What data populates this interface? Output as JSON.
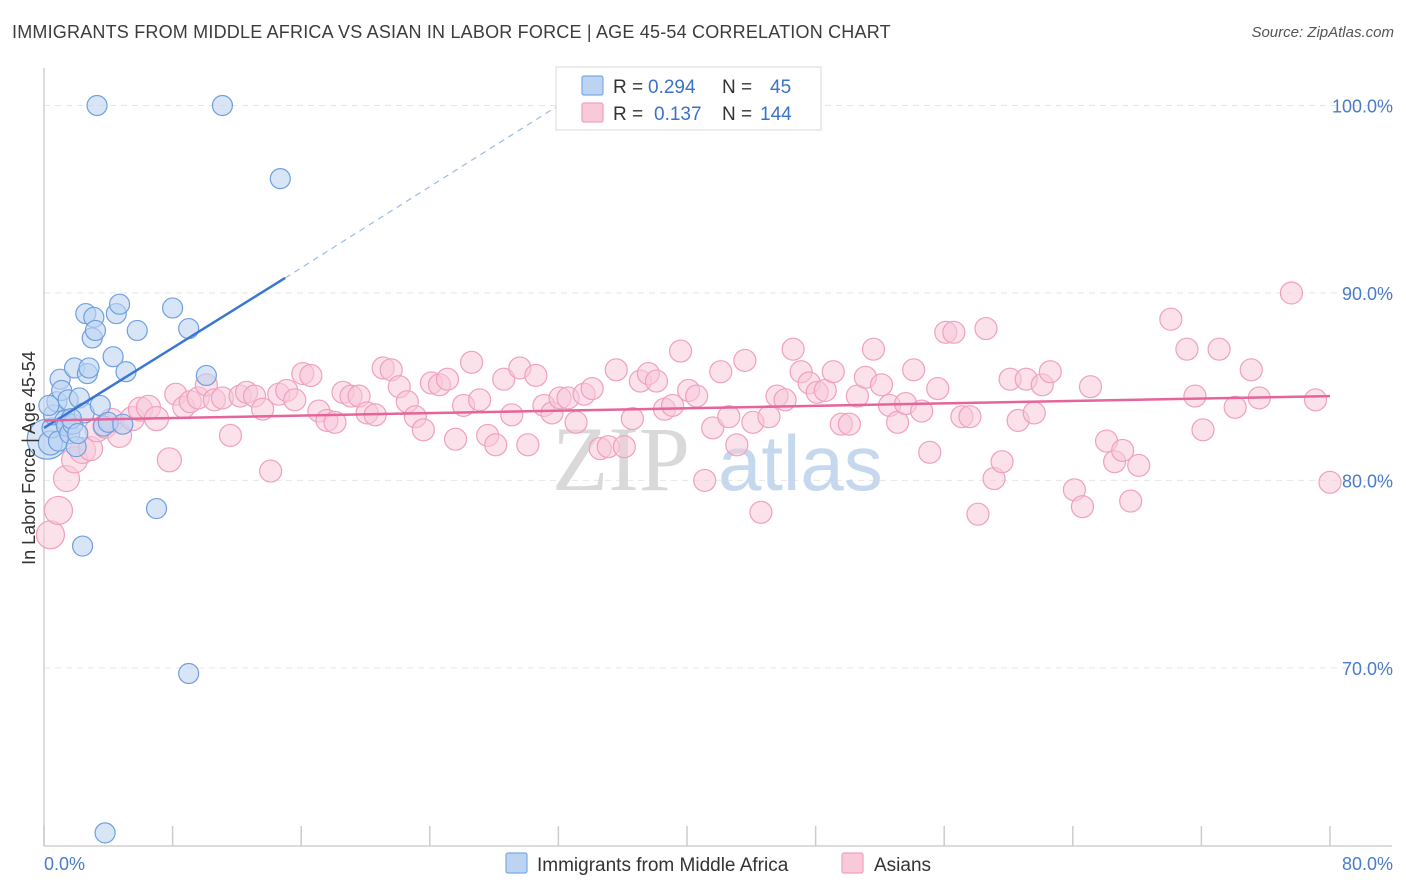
{
  "title": "IMMIGRANTS FROM MIDDLE AFRICA VS ASIAN IN LABOR FORCE | AGE 45-54 CORRELATION CHART",
  "source": "Source: ZipAtlas.com",
  "watermark": {
    "zip": "ZIP",
    "atlas": "atlas"
  },
  "chart_data": {
    "type": "scatter",
    "xlabel": "",
    "ylabel": "In Labor Force | Age 45-54",
    "xlim": [
      0,
      80
    ],
    "ylim": [
      60.5,
      102
    ],
    "x_tick_labels": [
      "0.0%",
      "80.0%"
    ],
    "y_ticks": [
      70,
      80,
      90,
      100
    ],
    "y_tick_labels": [
      "70.0%",
      "80.0%",
      "90.0%",
      "100.0%"
    ],
    "grid": true,
    "legend": {
      "placement": "top-center",
      "entries": [
        {
          "r_label": "R =",
          "r_value": "0.294",
          "n_label": "N =",
          "n_value": "45"
        },
        {
          "r_label": "R =",
          "r_value": "0.137",
          "n_label": "N =",
          "n_value": "144"
        }
      ]
    },
    "series": [
      {
        "name": "Immigrants from Middle Africa",
        "color": "#7aa9e3",
        "line_color": "#3a75d4",
        "trend": {
          "x": [
            0,
            15
          ],
          "y": [
            82.8,
            90.8
          ],
          "dashed_to": [
            32,
            100
          ]
        },
        "points": [
          [
            0.2,
            82.2
          ],
          [
            0.4,
            82.0
          ],
          [
            0.5,
            82.8
          ],
          [
            0.6,
            83.5
          ],
          [
            0.8,
            84.2
          ],
          [
            0.9,
            82.1
          ],
          [
            1.0,
            85.4
          ],
          [
            1.1,
            84.8
          ],
          [
            1.3,
            83.2
          ],
          [
            1.4,
            82.9
          ],
          [
            1.5,
            84.3
          ],
          [
            1.6,
            82.5
          ],
          [
            1.8,
            83.0
          ],
          [
            1.9,
            86.0
          ],
          [
            2.0,
            81.8
          ],
          [
            2.2,
            84.4
          ],
          [
            2.5,
            83.6
          ],
          [
            2.6,
            88.9
          ],
          [
            2.7,
            85.7
          ],
          [
            2.8,
            86.0
          ],
          [
            3.0,
            87.6
          ],
          [
            3.1,
            88.7
          ],
          [
            3.2,
            88.0
          ],
          [
            3.5,
            84.0
          ],
          [
            3.7,
            82.9
          ],
          [
            4.0,
            83.1
          ],
          [
            4.3,
            86.6
          ],
          [
            4.5,
            88.9
          ],
          [
            4.7,
            89.4
          ],
          [
            4.9,
            83.0
          ],
          [
            5.1,
            85.8
          ],
          [
            5.8,
            88.0
          ],
          [
            7.0,
            78.5
          ],
          [
            8.0,
            89.2
          ],
          [
            9.0,
            88.1
          ],
          [
            10.1,
            85.6
          ],
          [
            3.3,
            100.0
          ],
          [
            11.1,
            100.0
          ],
          [
            14.7,
            96.1
          ],
          [
            2.4,
            76.5
          ],
          [
            9.0,
            69.7
          ],
          [
            3.8,
            61.2
          ],
          [
            0.3,
            84.0
          ],
          [
            1.7,
            83.3
          ],
          [
            2.1,
            82.5
          ]
        ],
        "sizes": [
          20,
          12,
          10,
          10,
          10,
          10,
          10,
          10,
          10,
          10,
          10,
          10,
          10,
          10,
          10,
          10,
          10,
          10,
          10,
          10,
          10,
          10,
          10,
          10,
          10,
          10,
          10,
          10,
          10,
          10,
          10,
          10,
          10,
          10,
          10,
          10,
          10,
          10,
          10,
          10,
          10,
          10,
          10,
          10,
          10
        ]
      },
      {
        "name": "Asians",
        "color": "#f4a7c0",
        "line_color": "#e5659a",
        "trend": {
          "x": [
            0,
            80
          ],
          "y": [
            83.2,
            84.5
          ]
        },
        "points": [
          [
            0.4,
            77.1
          ],
          [
            0.9,
            78.4
          ],
          [
            1.4,
            80.1
          ],
          [
            1.9,
            81.1
          ],
          [
            2.4,
            81.6
          ],
          [
            2.9,
            81.7
          ],
          [
            3.3,
            82.7
          ],
          [
            3.8,
            82.9
          ],
          [
            4.2,
            83.2
          ],
          [
            4.7,
            82.4
          ],
          [
            5.5,
            83.3
          ],
          [
            6.0,
            83.8
          ],
          [
            6.5,
            83.9
          ],
          [
            7.0,
            83.3
          ],
          [
            7.8,
            81.1
          ],
          [
            8.2,
            84.6
          ],
          [
            8.7,
            83.9
          ],
          [
            9.1,
            84.2
          ],
          [
            9.6,
            84.4
          ],
          [
            10.1,
            85.1
          ],
          [
            10.6,
            84.3
          ],
          [
            11.1,
            84.4
          ],
          [
            11.6,
            82.4
          ],
          [
            12.2,
            84.5
          ],
          [
            12.6,
            84.7
          ],
          [
            13.1,
            84.5
          ],
          [
            13.6,
            83.8
          ],
          [
            14.1,
            80.5
          ],
          [
            14.6,
            84.6
          ],
          [
            15.1,
            84.8
          ],
          [
            15.6,
            84.3
          ],
          [
            16.1,
            85.7
          ],
          [
            16.6,
            85.6
          ],
          [
            17.1,
            83.7
          ],
          [
            17.6,
            83.2
          ],
          [
            18.1,
            83.1
          ],
          [
            18.6,
            84.7
          ],
          [
            19.1,
            84.5
          ],
          [
            19.6,
            84.5
          ],
          [
            20.1,
            83.6
          ],
          [
            20.6,
            83.5
          ],
          [
            21.1,
            86.0
          ],
          [
            21.6,
            85.9
          ],
          [
            22.1,
            85.0
          ],
          [
            22.6,
            84.2
          ],
          [
            23.1,
            83.4
          ],
          [
            23.6,
            82.7
          ],
          [
            24.1,
            85.2
          ],
          [
            24.6,
            85.1
          ],
          [
            25.1,
            85.4
          ],
          [
            25.6,
            82.2
          ],
          [
            26.1,
            84.0
          ],
          [
            26.6,
            86.3
          ],
          [
            27.1,
            84.3
          ],
          [
            27.6,
            82.4
          ],
          [
            28.1,
            81.9
          ],
          [
            28.6,
            85.4
          ],
          [
            29.1,
            83.5
          ],
          [
            29.6,
            86.0
          ],
          [
            30.1,
            81.9
          ],
          [
            30.6,
            85.6
          ],
          [
            31.1,
            84.0
          ],
          [
            31.6,
            83.6
          ],
          [
            32.1,
            84.4
          ],
          [
            32.6,
            84.4
          ],
          [
            33.1,
            83.1
          ],
          [
            33.6,
            84.6
          ],
          [
            34.1,
            84.9
          ],
          [
            34.6,
            81.7
          ],
          [
            35.1,
            81.8
          ],
          [
            35.6,
            85.9
          ],
          [
            36.1,
            81.8
          ],
          [
            36.6,
            83.3
          ],
          [
            37.1,
            85.3
          ],
          [
            37.6,
            85.7
          ],
          [
            38.1,
            85.3
          ],
          [
            38.6,
            83.8
          ],
          [
            39.1,
            84.0
          ],
          [
            39.6,
            86.9
          ],
          [
            40.1,
            84.8
          ],
          [
            40.6,
            84.5
          ],
          [
            41.1,
            80.0
          ],
          [
            41.6,
            82.8
          ],
          [
            42.1,
            85.8
          ],
          [
            42.6,
            83.4
          ],
          [
            43.1,
            81.9
          ],
          [
            43.6,
            86.4
          ],
          [
            44.1,
            83.1
          ],
          [
            44.6,
            78.3
          ],
          [
            45.1,
            83.4
          ],
          [
            45.6,
            84.5
          ],
          [
            46.1,
            84.3
          ],
          [
            46.6,
            87.0
          ],
          [
            47.1,
            85.8
          ],
          [
            47.6,
            85.2
          ],
          [
            48.1,
            84.7
          ],
          [
            48.6,
            84.8
          ],
          [
            49.1,
            85.8
          ],
          [
            49.6,
            83.0
          ],
          [
            50.1,
            83.0
          ],
          [
            50.6,
            84.5
          ],
          [
            51.1,
            85.5
          ],
          [
            51.6,
            87.0
          ],
          [
            52.1,
            85.1
          ],
          [
            52.6,
            84.0
          ],
          [
            53.1,
            83.1
          ],
          [
            53.6,
            84.1
          ],
          [
            54.1,
            85.9
          ],
          [
            54.6,
            83.7
          ],
          [
            55.1,
            81.5
          ],
          [
            55.6,
            84.9
          ],
          [
            56.1,
            87.9
          ],
          [
            56.6,
            87.9
          ],
          [
            57.1,
            83.4
          ],
          [
            57.6,
            83.4
          ],
          [
            58.1,
            78.2
          ],
          [
            58.6,
            88.1
          ],
          [
            59.1,
            80.1
          ],
          [
            59.6,
            81.0
          ],
          [
            60.1,
            85.4
          ],
          [
            60.6,
            83.2
          ],
          [
            61.1,
            85.4
          ],
          [
            61.6,
            83.6
          ],
          [
            62.1,
            85.1
          ],
          [
            62.6,
            85.8
          ],
          [
            64.1,
            79.5
          ],
          [
            64.6,
            78.6
          ],
          [
            65.1,
            85.0
          ],
          [
            66.1,
            82.1
          ],
          [
            66.6,
            81.0
          ],
          [
            67.1,
            81.6
          ],
          [
            67.6,
            78.9
          ],
          [
            68.1,
            80.8
          ],
          [
            70.1,
            88.6
          ],
          [
            71.1,
            87.0
          ],
          [
            71.6,
            84.5
          ],
          [
            72.1,
            82.7
          ],
          [
            73.1,
            87.0
          ],
          [
            74.1,
            83.9
          ],
          [
            75.1,
            85.9
          ],
          [
            75.6,
            84.4
          ],
          [
            77.6,
            90.0
          ],
          [
            79.1,
            84.3
          ],
          [
            80.0,
            79.9
          ]
        ],
        "sizes": [
          14,
          14,
          13,
          13,
          13,
          12,
          12,
          12,
          12,
          12,
          12,
          12,
          12,
          12,
          12,
          11,
          11,
          11,
          11,
          11,
          11,
          11,
          11,
          11,
          11,
          11,
          11,
          11,
          11,
          11,
          11,
          11,
          11,
          11,
          11,
          11,
          11,
          11,
          11,
          11,
          11,
          11,
          11,
          11,
          11,
          11,
          11,
          11,
          11,
          11,
          11,
          11,
          11,
          11,
          11,
          11,
          11,
          11,
          11,
          11,
          11,
          11,
          11,
          11,
          11,
          11,
          11,
          11,
          11,
          11,
          11,
          11,
          11,
          11,
          11,
          11,
          11,
          11,
          11,
          11,
          11,
          11,
          11,
          11,
          11,
          11,
          11,
          11,
          11,
          11,
          11,
          11,
          11,
          11,
          11,
          11,
          11,
          11,
          11,
          11,
          11,
          11,
          11,
          11,
          11,
          11,
          11,
          11,
          11,
          11,
          11,
          11,
          11,
          11,
          11,
          11,
          11,
          11,
          11,
          11,
          11,
          11,
          11,
          11,
          11,
          11,
          11,
          11,
          11,
          11,
          11,
          11,
          11,
          11,
          11,
          11,
          11,
          11,
          11,
          11,
          11,
          11,
          11,
          11
        ]
      }
    ]
  }
}
